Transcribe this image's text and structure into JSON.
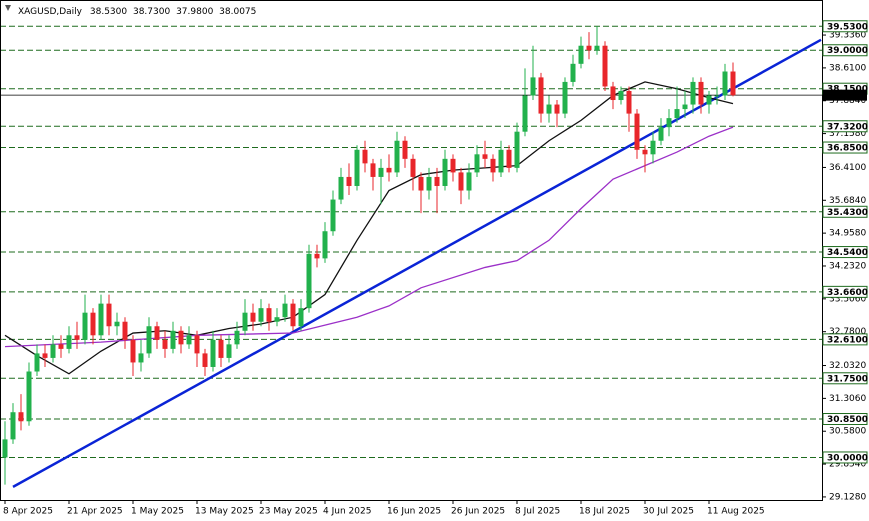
{
  "chart_data": {
    "type": "candlestick",
    "title": "XAGUSD,Daily",
    "header_labels": [
      "38.5300",
      "38.7300",
      "37.9800",
      "38.0075"
    ],
    "categories": [
      "8 Apr 2025",
      null,
      null,
      null,
      null,
      null,
      null,
      null,
      "21 Apr 2025",
      null,
      null,
      null,
      null,
      null,
      null,
      null,
      "1 May 2025",
      null,
      null,
      null,
      null,
      null,
      null,
      null,
      "13 May 2025",
      null,
      null,
      null,
      null,
      null,
      null,
      null,
      "23 May 2025",
      null,
      null,
      null,
      null,
      null,
      null,
      null,
      "4 Jun 2025",
      null,
      null,
      null,
      null,
      null,
      null,
      null,
      "16 Jun 2025",
      null,
      null,
      null,
      null,
      null,
      null,
      null,
      "26 Jun 2025",
      null,
      null,
      null,
      null,
      null,
      null,
      null,
      "8 Jul 2025",
      null,
      null,
      null,
      null,
      null,
      null,
      null,
      "18 Jul 2025",
      null,
      null,
      null,
      null,
      null,
      null,
      null,
      "30 Jul 2025",
      null,
      null,
      null,
      null,
      null,
      null,
      null,
      "11 Aug 2025",
      null,
      null,
      null
    ],
    "open": [
      30.0,
      30.4,
      31.0,
      30.8,
      31.9,
      32.3,
      32.2,
      32.5,
      32.4,
      32.7,
      32.6,
      33.2,
      32.7,
      33.4,
      32.9,
      33.0,
      32.6,
      32.1,
      32.3,
      32.9,
      32.6,
      32.4,
      32.8,
      32.5,
      32.7,
      32.3,
      32.0,
      32.6,
      32.2,
      32.5,
      32.8,
      33.2,
      33.0,
      33.3,
      33.0,
      33.1,
      33.4,
      32.9,
      33.3,
      34.5,
      34.4,
      35.0,
      35.7,
      36.2,
      36.0,
      36.8,
      36.5,
      36.2,
      36.4,
      36.3,
      37.0,
      36.6,
      36.2,
      35.9,
      36.2,
      36.0,
      36.6,
      36.3,
      35.9,
      36.3,
      36.7,
      36.6,
      36.3,
      36.8,
      36.4,
      37.2,
      38.0,
      38.4,
      37.6,
      37.8,
      37.6,
      38.3,
      38.7,
      39.1,
      39.0,
      39.1,
      38.2,
      37.9,
      38.1,
      37.6,
      36.8,
      36.7,
      37.0,
      37.3,
      37.5,
      37.7,
      37.8,
      38.3,
      37.8,
      38.0,
      38.0,
      38.53
    ],
    "high": [
      30.8,
      31.2,
      31.4,
      32.1,
      32.5,
      32.5,
      32.7,
      32.7,
      32.9,
      33.0,
      33.6,
      33.3,
      33.6,
      33.6,
      33.2,
      33.1,
      32.7,
      32.6,
      33.1,
      33.0,
      32.8,
      33.0,
      32.9,
      32.9,
      32.8,
      32.4,
      32.8,
      32.7,
      32.7,
      33.0,
      33.5,
      33.4,
      33.5,
      33.4,
      33.3,
      33.6,
      33.5,
      33.5,
      34.7,
      34.7,
      35.2,
      35.9,
      36.4,
      36.5,
      36.9,
      37.0,
      36.6,
      36.6,
      36.7,
      37.2,
      37.1,
      36.7,
      36.3,
      36.4,
      36.4,
      36.8,
      36.7,
      36.4,
      36.5,
      36.9,
      37.0,
      36.7,
      37.0,
      36.9,
      37.4,
      38.6,
      39.1,
      38.5,
      38.0,
      37.9,
      38.4,
      38.9,
      39.3,
      39.4,
      39.53,
      39.2,
      38.3,
      38.2,
      38.2,
      37.7,
      36.9,
      37.2,
      37.5,
      37.7,
      38.2,
      38.1,
      38.4,
      38.4,
      38.1,
      38.2,
      38.7,
      38.73
    ],
    "low": [
      29.4,
      30.3,
      30.6,
      30.7,
      31.8,
      32.0,
      32.1,
      32.2,
      32.3,
      32.4,
      32.5,
      32.5,
      32.6,
      32.7,
      32.7,
      32.4,
      31.8,
      31.9,
      32.2,
      32.4,
      32.2,
      32.3,
      32.3,
      32.4,
      32.0,
      31.8,
      31.9,
      32.0,
      32.1,
      32.4,
      32.7,
      32.8,
      32.9,
      32.8,
      32.9,
      33.0,
      32.8,
      32.8,
      33.2,
      34.2,
      34.3,
      34.9,
      35.6,
      35.8,
      35.9,
      36.3,
      35.9,
      35.6,
      36.1,
      36.2,
      36.4,
      35.9,
      35.4,
      35.7,
      35.4,
      35.9,
      36.1,
      35.6,
      35.7,
      36.2,
      36.4,
      36.1,
      36.2,
      36.3,
      36.3,
      37.1,
      37.9,
      37.4,
      37.4,
      37.3,
      37.5,
      38.2,
      38.6,
      38.8,
      38.9,
      38.1,
      37.7,
      37.8,
      37.2,
      36.6,
      36.3,
      36.5,
      36.9,
      37.1,
      37.4,
      37.5,
      37.6,
      37.6,
      37.6,
      37.8,
      37.9,
      37.98
    ],
    "close": [
      30.4,
      31.0,
      30.8,
      31.9,
      32.3,
      32.2,
      32.5,
      32.4,
      32.7,
      32.6,
      33.2,
      32.7,
      33.4,
      32.9,
      33.0,
      32.6,
      32.1,
      32.3,
      32.9,
      32.6,
      32.4,
      32.8,
      32.5,
      32.7,
      32.3,
      32.0,
      32.6,
      32.2,
      32.5,
      32.8,
      33.2,
      33.0,
      33.3,
      33.0,
      33.1,
      33.4,
      32.9,
      33.3,
      34.5,
      34.4,
      35.0,
      35.7,
      36.2,
      36.0,
      36.8,
      36.5,
      36.2,
      36.4,
      36.3,
      37.0,
      36.6,
      36.2,
      35.9,
      36.2,
      36.0,
      36.6,
      36.3,
      35.9,
      36.3,
      36.7,
      36.6,
      36.3,
      36.8,
      36.4,
      37.2,
      38.0,
      38.4,
      37.6,
      37.8,
      37.6,
      38.3,
      38.7,
      39.1,
      39.0,
      39.1,
      38.2,
      37.9,
      38.1,
      37.6,
      36.8,
      36.7,
      37.0,
      37.3,
      37.5,
      37.7,
      37.8,
      38.3,
      37.8,
      38.0,
      38.0,
      38.53,
      38.0075
    ],
    "up_color": "#22b14c",
    "down_color": "#e8262b",
    "moving_averages": [
      {
        "color": "#111111",
        "x": [
          0,
          4,
          8,
          12,
          16,
          20,
          24,
          28,
          32,
          36,
          40,
          44,
          48,
          52,
          56,
          60,
          64,
          68,
          72,
          76,
          80,
          84,
          88,
          91
        ],
        "values": [
          32.7,
          32.25,
          31.85,
          32.35,
          32.75,
          32.8,
          32.7,
          32.85,
          32.95,
          33.1,
          33.6,
          34.8,
          35.9,
          36.25,
          36.35,
          36.4,
          36.45,
          37.0,
          37.45,
          38.0,
          38.3,
          38.15,
          37.95,
          37.82
        ]
      },
      {
        "color": "#9b30c8",
        "x": [
          0,
          12,
          24,
          36,
          44,
          48,
          52,
          60,
          64,
          68,
          72,
          76,
          80,
          84,
          88,
          91
        ],
        "values": [
          32.45,
          32.55,
          32.7,
          32.75,
          33.1,
          33.35,
          33.75,
          34.2,
          34.35,
          34.8,
          35.5,
          36.15,
          36.45,
          36.75,
          37.1,
          37.3
        ]
      }
    ],
    "trend_line": {
      "color": "#0a24d6",
      "x": [
        1,
        102
      ],
      "values": [
        29.35,
        39.23
      ]
    },
    "levels": [
      {
        "value": 39.53,
        "label": "39.5300"
      },
      {
        "value": 39.0,
        "label": "39.0000"
      },
      {
        "value": 38.15,
        "label": "38.1500"
      },
      {
        "value": 37.32,
        "label": "37.3200"
      },
      {
        "value": 36.85,
        "label": "36.8500"
      },
      {
        "value": 35.43,
        "label": "35.4300"
      },
      {
        "value": 34.54,
        "label": "34.5400"
      },
      {
        "value": 33.66,
        "label": "33.6600"
      },
      {
        "value": 32.61,
        "label": "32.6100"
      },
      {
        "value": 31.75,
        "label": "31.7500"
      },
      {
        "value": 30.85,
        "label": "30.8500"
      },
      {
        "value": 30.0,
        "label": "30.0000"
      }
    ],
    "level_color": "#1e6b1e",
    "current_price": {
      "value": 38.0075,
      "label": "38.0075"
    },
    "ylim": [
      29.06,
      40.0
    ],
    "yticks": [
      {
        "value": 39.336,
        "label": "39.3360"
      },
      {
        "value": 38.61,
        "label": "38.6100"
      },
      {
        "value": 37.884,
        "label": "37.8840"
      },
      {
        "value": 37.158,
        "label": "37.1580"
      },
      {
        "value": 36.41,
        "label": "36.4100"
      },
      {
        "value": 35.684,
        "label": "35.6840"
      },
      {
        "value": 34.958,
        "label": "34.9580"
      },
      {
        "value": 34.232,
        "label": "34.2320"
      },
      {
        "value": 33.506,
        "label": "33.5060"
      },
      {
        "value": 32.78,
        "label": "32.7800"
      },
      {
        "value": 32.032,
        "label": "32.0320"
      },
      {
        "value": 31.306,
        "label": "31.3060"
      },
      {
        "value": 30.58,
        "label": "30.5800"
      },
      {
        "value": 29.854,
        "label": "29.8540"
      },
      {
        "value": 29.128,
        "label": "29.1280"
      }
    ]
  }
}
